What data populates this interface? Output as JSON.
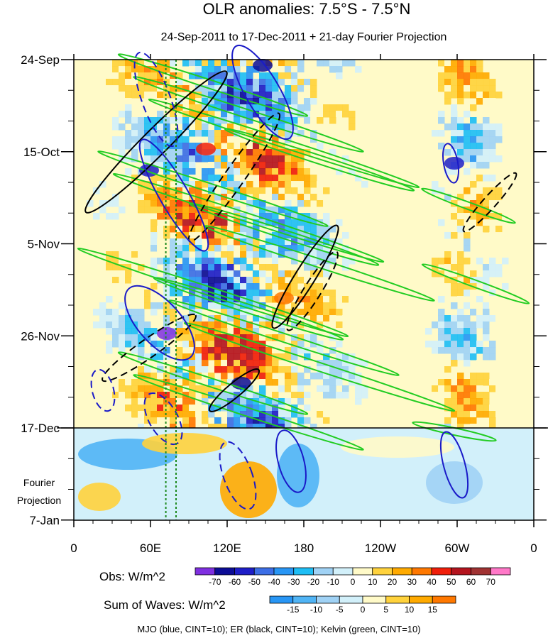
{
  "chart_data": {
    "type": "heatmap",
    "title": "OLR anomalies: 7.5°S - 7.5°N",
    "subtitle": "24-Sep-2011 to 17-Dec-2011 + 21-day Fourier Projection",
    "x_ticks": [
      "0",
      "60E",
      "120E",
      "180",
      "120W",
      "60W",
      "0"
    ],
    "x_range_deg_east": [
      0,
      360
    ],
    "y_ticks": [
      "24-Sep",
      "15-Oct",
      "5-Nov",
      "26-Nov",
      "17-Dec",
      "7-Jan"
    ],
    "y_range": [
      "24-Sep-2011",
      "7-Jan-2012"
    ],
    "projection_start": "17-Dec",
    "projection_label": "Fourier Projection",
    "obs_colorbar": {
      "label": "Obs: W/m^2",
      "ticks": [
        "-70",
        "-60",
        "-50",
        "-40",
        "-30",
        "-20",
        "-10",
        "0",
        "10",
        "20",
        "30",
        "40",
        "50",
        "60",
        "70"
      ],
      "colors": [
        "#7f2fe0",
        "#0c0c96",
        "#1e1ec8",
        "#3c6ee6",
        "#2896f5",
        "#1ebef5",
        "#a0d2f5",
        "#d2f0fa",
        "#fffac8",
        "#ffd23c",
        "#ffaa00",
        "#ff7800",
        "#f01e0a",
        "#b4141e",
        "#a03232",
        "#ff78c8"
      ]
    },
    "waves_colorbar": {
      "label": "Sum of Waves: W/m^2",
      "ticks": [
        "-15",
        "-10",
        "-5",
        "0",
        "5",
        "10",
        "15"
      ],
      "colors": [
        "#2896f5",
        "#50b4f5",
        "#a0d2f5",
        "#d2f0fa",
        "#fffac8",
        "#ffd23c",
        "#ffaa00",
        "#ff7800"
      ]
    },
    "legend_note": "MJO (blue, CINT=10); ER (black, CINT=10); Kelvin (green, CINT=10)",
    "series": [
      {
        "name": "MJO",
        "color": "#1a1ac8",
        "cint": 10
      },
      {
        "name": "ER",
        "color": "#000000",
        "cint": 10
      },
      {
        "name": "Kelvin",
        "color": "#22cc22",
        "cint": 10
      }
    ],
    "vertical_markers_deg": [
      72,
      80
    ],
    "vertical_marker_color": "#1f8a1f",
    "grid": false
  }
}
